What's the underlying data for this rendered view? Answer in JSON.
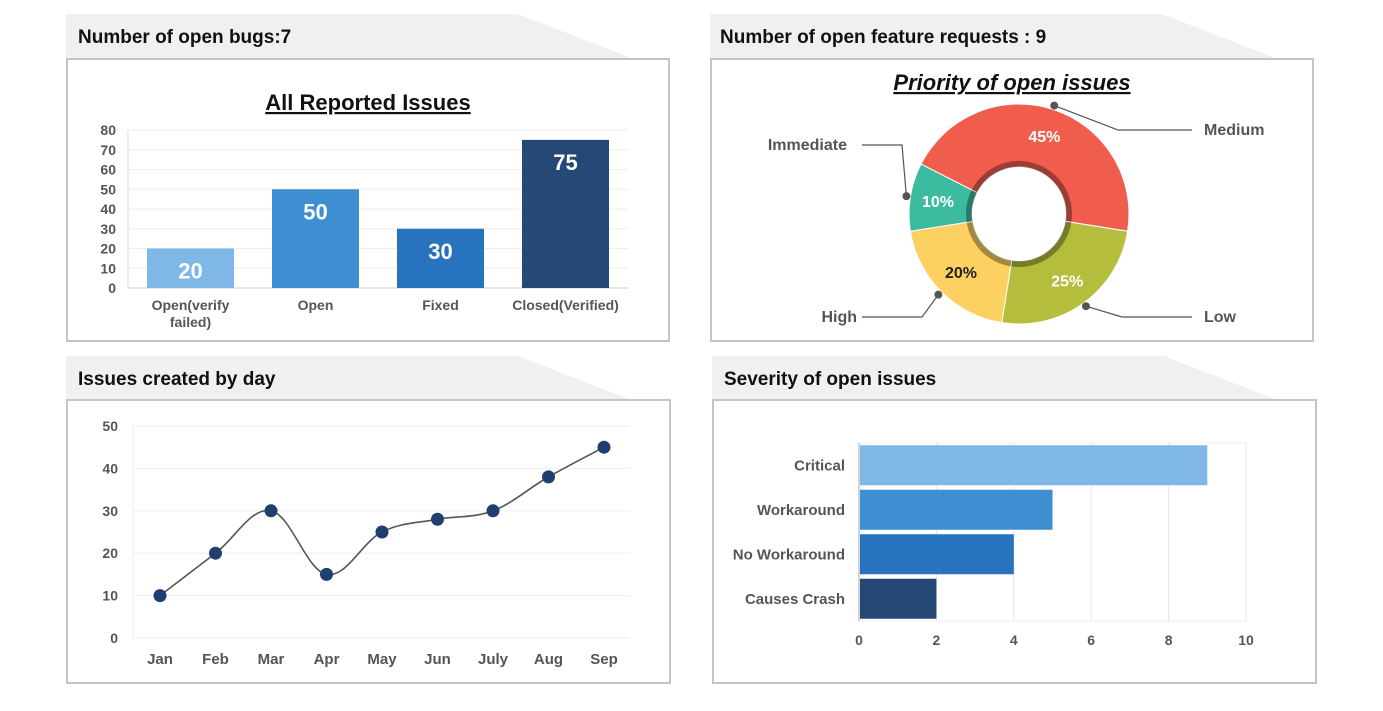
{
  "panels": {
    "bugs": {
      "header": "Number of open bugs:7"
    },
    "features": {
      "header": "Number of open feature requests : 9"
    },
    "daily": {
      "header": "Issues created by day"
    },
    "severity": {
      "header": "Severity of open issues"
    }
  },
  "chart_data": [
    {
      "type": "bar",
      "title": "All Reported Issues",
      "categories": [
        "Open(verify\nfailed)",
        "Open",
        "Fixed",
        "Closed(Verified)"
      ],
      "values": [
        20,
        50,
        30,
        75
      ],
      "colors": [
        "#7fb8e6",
        "#3e8fd2",
        "#2873be",
        "#264874"
      ],
      "ylim": [
        0,
        80
      ],
      "yticks": [
        0,
        10,
        20,
        30,
        40,
        50,
        60,
        70,
        80
      ],
      "grid": true
    },
    {
      "type": "pie",
      "title": "Priority of open issues",
      "labels": [
        "Medium",
        "Low",
        "High",
        "Immediate"
      ],
      "values": [
        45,
        25,
        20,
        10
      ],
      "value_labels": [
        "45%",
        "25%",
        "20%",
        "10%"
      ],
      "colors": [
        "#f05d4d",
        "#b4be3c",
        "#fdd062",
        "#3cbba0"
      ],
      "donut": true
    },
    {
      "type": "line",
      "categories": [
        "Jan",
        "Feb",
        "Mar",
        "Apr",
        "May",
        "Jun",
        "July",
        "Aug",
        "Sep"
      ],
      "values": [
        10,
        20,
        30,
        15,
        25,
        28,
        30,
        38,
        45
      ],
      "ylim": [
        0,
        50
      ],
      "yticks": [
        0,
        10,
        20,
        30,
        40,
        50
      ],
      "line_color": "#555555",
      "marker_color": "#1f3f6e",
      "grid": true
    },
    {
      "type": "bar",
      "orientation": "horizontal",
      "categories": [
        "Critical",
        "Workaround",
        "No Workaround",
        "Causes Crash"
      ],
      "values": [
        9,
        5,
        4,
        2
      ],
      "colors": [
        "#7fb8e6",
        "#3e8fd2",
        "#2873be",
        "#264874"
      ],
      "xlim": [
        0,
        10
      ],
      "xticks": [
        0,
        2,
        4,
        6,
        8,
        10
      ],
      "grid": true
    }
  ]
}
